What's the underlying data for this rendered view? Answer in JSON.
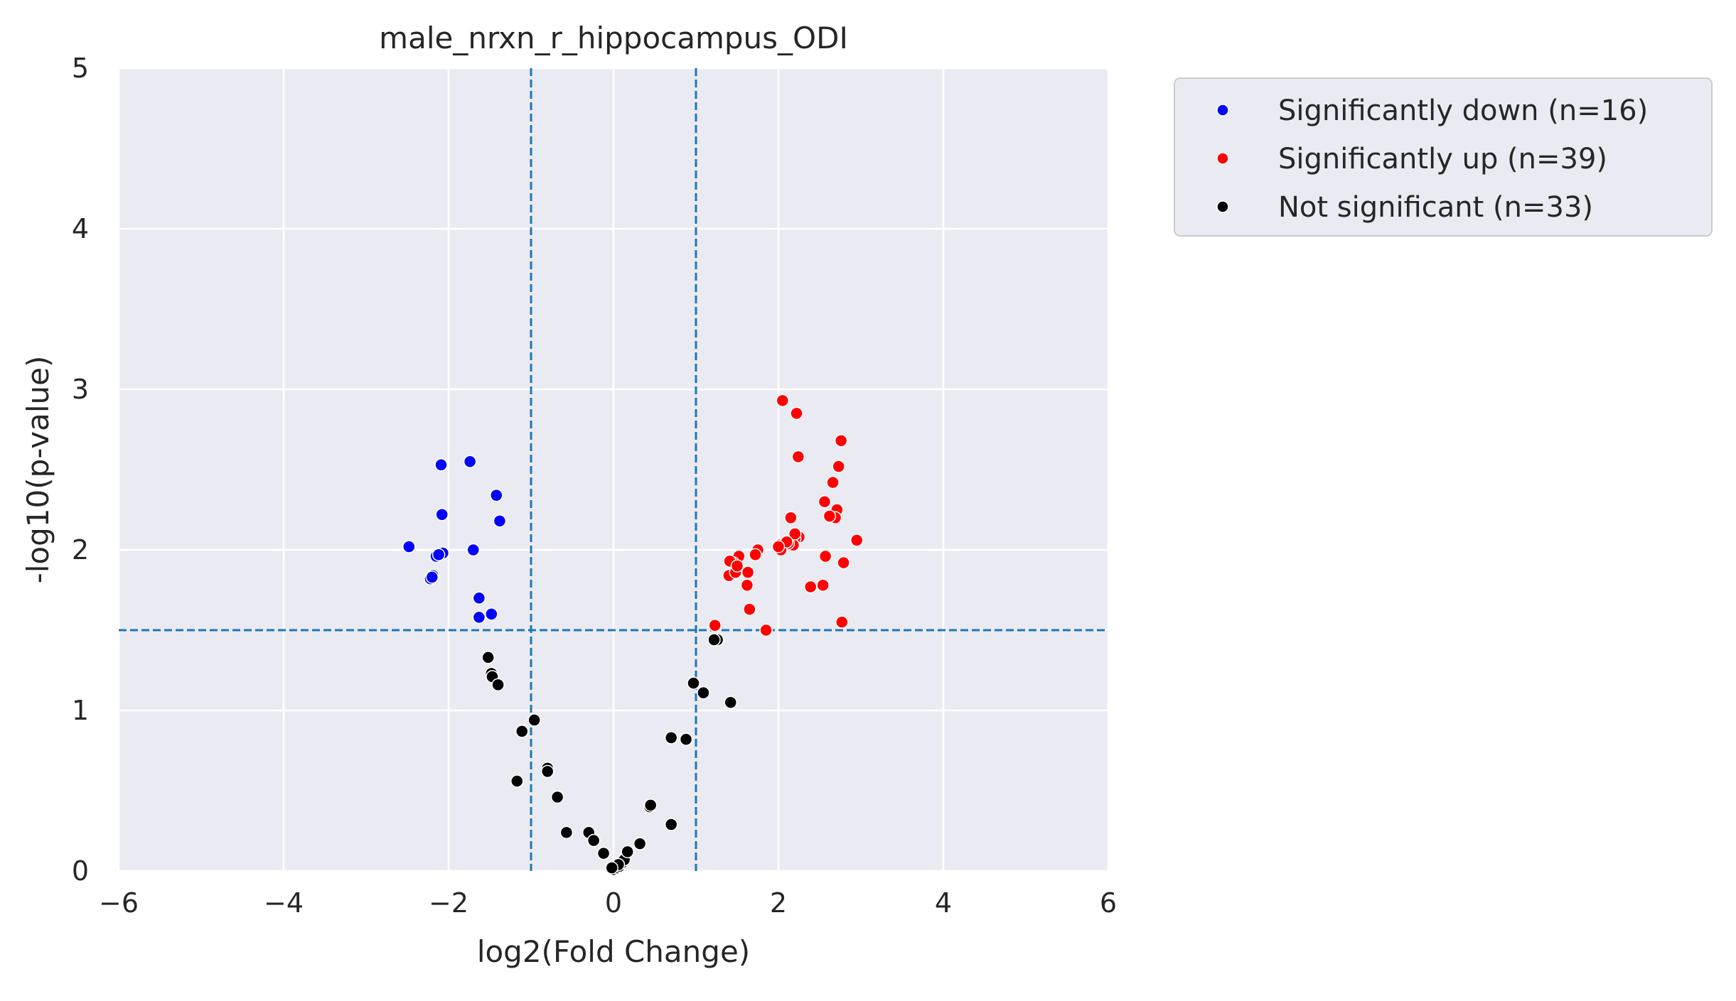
{
  "chart_data": {
    "type": "scatter",
    "title": "male_nrxn_r_hippocampus_ODI",
    "xlabel": "log2(Fold Change)",
    "ylabel": "-log10(p-value)",
    "xlim": [
      -6,
      6
    ],
    "ylim": [
      0,
      5
    ],
    "xticks": [
      -6,
      -4,
      -2,
      0,
      2,
      4,
      6
    ],
    "xtick_labels": [
      "−6",
      "−4",
      "−2",
      "0",
      "2",
      "4",
      "6"
    ],
    "yticks": [
      0,
      1,
      2,
      3,
      4,
      5
    ],
    "ytick_labels": [
      "0",
      "1",
      "2",
      "3",
      "4",
      "5"
    ],
    "grid": true,
    "legend_position": "outside-upper-right",
    "threshold_lines": {
      "vertical": [
        -1,
        1
      ],
      "horizontal": [
        1.5
      ],
      "style": "dashed",
      "color": "#1f77b4"
    },
    "colors": {
      "background": "#eaeaf2",
      "grid": "#ffffff",
      "threshold": "#1f77b4"
    },
    "series": [
      {
        "name": "Significantly down (n=16)",
        "color": "#0000ff",
        "points": [
          [
            -2.48,
            2.02
          ],
          [
            -2.22,
            1.82
          ],
          [
            -2.19,
            1.84
          ],
          [
            -2.15,
            1.96
          ],
          [
            -2.09,
            2.53
          ],
          [
            -2.08,
            2.22
          ],
          [
            -2.07,
            1.98
          ],
          [
            -1.74,
            2.55
          ],
          [
            -1.7,
            2.0
          ],
          [
            -1.63,
            1.7
          ],
          [
            -1.63,
            1.58
          ],
          [
            -1.48,
            1.6
          ],
          [
            -1.42,
            2.34
          ],
          [
            -1.38,
            2.18
          ],
          [
            -2.2,
            1.83
          ],
          [
            -2.12,
            1.97
          ]
        ]
      },
      {
        "name": "Significantly up (n=39)",
        "color": "#ff0000",
        "points": [
          [
            2.05,
            2.93
          ],
          [
            2.22,
            2.85
          ],
          [
            2.24,
            2.58
          ],
          [
            2.76,
            2.68
          ],
          [
            2.73,
            2.52
          ],
          [
            2.66,
            2.42
          ],
          [
            2.56,
            2.3
          ],
          [
            2.71,
            2.25
          ],
          [
            2.69,
            2.2
          ],
          [
            2.15,
            2.2
          ],
          [
            2.95,
            2.06
          ],
          [
            2.25,
            2.08
          ],
          [
            2.2,
            2.07
          ],
          [
            2.18,
            2.03
          ],
          [
            2.12,
            2.04
          ],
          [
            2.01,
            2.03
          ],
          [
            2.03,
            2.0
          ],
          [
            1.75,
            2.0
          ],
          [
            1.72,
            1.97
          ],
          [
            1.52,
            1.96
          ],
          [
            1.45,
            1.92
          ],
          [
            1.41,
            1.93
          ],
          [
            1.4,
            1.84
          ],
          [
            1.48,
            1.86
          ],
          [
            1.63,
            1.86
          ],
          [
            1.62,
            1.78
          ],
          [
            2.79,
            1.92
          ],
          [
            2.57,
            1.96
          ],
          [
            2.39,
            1.77
          ],
          [
            2.54,
            1.78
          ],
          [
            1.65,
            1.63
          ],
          [
            1.85,
            1.5
          ],
          [
            1.23,
            1.53
          ],
          [
            2.77,
            1.55
          ],
          [
            2.2,
            2.1
          ],
          [
            2.1,
            2.05
          ],
          [
            1.5,
            1.9
          ],
          [
            2.0,
            2.02
          ],
          [
            2.62,
            2.21
          ]
        ]
      },
      {
        "name": "Not significant (n=33)",
        "color": "#000000",
        "points": [
          [
            -1.52,
            1.33
          ],
          [
            -1.48,
            1.23
          ],
          [
            -1.47,
            1.21
          ],
          [
            -1.4,
            1.16
          ],
          [
            -0.96,
            0.94
          ],
          [
            -1.11,
            0.87
          ],
          [
            -0.8,
            0.64
          ],
          [
            -0.8,
            0.62
          ],
          [
            -1.17,
            0.56
          ],
          [
            -0.68,
            0.46
          ],
          [
            -0.57,
            0.24
          ],
          [
            -0.3,
            0.24
          ],
          [
            -0.24,
            0.19
          ],
          [
            -0.12,
            0.11
          ],
          [
            0.0,
            0.01
          ],
          [
            0.04,
            0.02
          ],
          [
            0.07,
            0.03
          ],
          [
            0.1,
            0.05
          ],
          [
            0.13,
            0.07
          ],
          [
            0.17,
            0.12
          ],
          [
            0.32,
            0.17
          ],
          [
            0.44,
            0.4
          ],
          [
            0.7,
            0.29
          ],
          [
            0.7,
            0.83
          ],
          [
            0.88,
            0.82
          ],
          [
            0.97,
            1.17
          ],
          [
            1.09,
            1.11
          ],
          [
            1.26,
            1.44
          ],
          [
            1.22,
            1.44
          ],
          [
            1.42,
            1.05
          ],
          [
            0.06,
            0.04
          ],
          [
            -0.02,
            0.02
          ],
          [
            0.45,
            0.41
          ]
        ]
      }
    ]
  }
}
